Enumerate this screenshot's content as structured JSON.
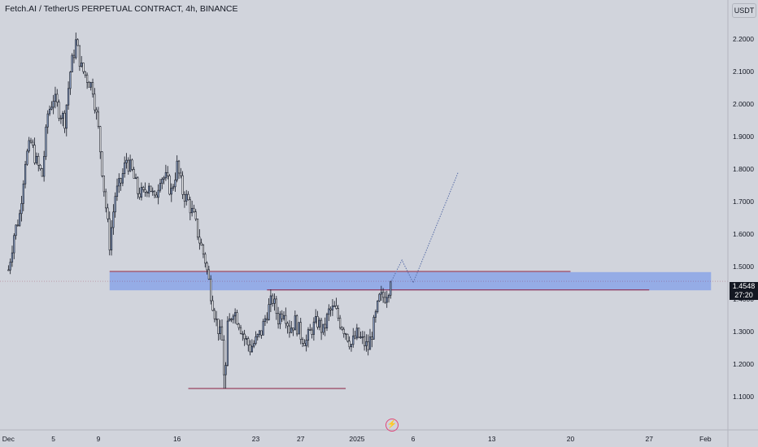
{
  "header": {
    "title": "Fetch.AI / TetherUS PERPETUAL CONTRACT, 4h, BINANCE",
    "currency_button": "USDT"
  },
  "price_tag": {
    "price": "1.4548",
    "countdown": "27:20"
  },
  "colors": {
    "background": "#d1d4dc",
    "candle_up": "#8fa5cc",
    "candle_down": "#ffffff",
    "wick": "#131722",
    "zone_fill": "#8fa8e6",
    "level_line": "#8b1f3f",
    "projection": "#5a6fa8",
    "price_tag_bg": "#131722"
  },
  "icons": {
    "bolt": "lightning-bolt-icon"
  },
  "chart_data": {
    "type": "candlestick",
    "y_axis": {
      "ticks": [
        "1.1000",
        "1.2000",
        "1.3000",
        "1.4000",
        "1.5000",
        "1.6000",
        "1.7000",
        "1.8000",
        "1.9000",
        "2.0000",
        "2.1000",
        "2.2000"
      ],
      "range": [
        1.02,
        2.32
      ],
      "position": "right"
    },
    "x_axis": {
      "ticks": [
        {
          "label": "Dec",
          "date": "2024-12-01"
        },
        {
          "label": "5",
          "date": "2024-12-05"
        },
        {
          "label": "9",
          "date": "2024-12-09"
        },
        {
          "label": "16",
          "date": "2024-12-16"
        },
        {
          "label": "23",
          "date": "2024-12-23"
        },
        {
          "label": "27",
          "date": "2024-12-27"
        },
        {
          "label": "2025",
          "date": "2025-01-01"
        },
        {
          "label": "6",
          "date": "2025-01-06"
        },
        {
          "label": "13",
          "date": "2025-01-13"
        },
        {
          "label": "20",
          "date": "2025-01-20"
        },
        {
          "label": "27",
          "date": "2025-01-27"
        },
        {
          "label": "Feb",
          "date": "2025-02-01"
        }
      ]
    },
    "grid": false,
    "price_path": [
      [
        "2024-12-01",
        1.49
      ],
      [
        "2024-12-01T12",
        1.6
      ],
      [
        "2024-12-02",
        1.66
      ],
      [
        "2024-12-02T12",
        1.83
      ],
      [
        "2024-12-03",
        1.88
      ],
      [
        "2024-12-03T12",
        1.82
      ],
      [
        "2024-12-04",
        1.78
      ],
      [
        "2024-12-04T12",
        1.97
      ],
      [
        "2024-12-05",
        2.02
      ],
      [
        "2024-12-05T12",
        1.98
      ],
      [
        "2024-12-06",
        1.95
      ],
      [
        "2024-12-06T12",
        2.1
      ],
      [
        "2024-12-07",
        2.19
      ],
      [
        "2024-12-07T12",
        2.11
      ],
      [
        "2024-12-08",
        2.08
      ],
      [
        "2024-12-08T12",
        2.05
      ],
      [
        "2024-12-09",
        1.92
      ],
      [
        "2024-12-09T12",
        1.74
      ],
      [
        "2024-12-10",
        1.57
      ],
      [
        "2024-12-10T12",
        1.72
      ],
      [
        "2024-12-11",
        1.76
      ],
      [
        "2024-12-11T12",
        1.83
      ],
      [
        "2024-12-12",
        1.79
      ],
      [
        "2024-12-12T12",
        1.73
      ],
      [
        "2024-12-13",
        1.72
      ],
      [
        "2024-12-13T12",
        1.76
      ],
      [
        "2024-12-14",
        1.7
      ],
      [
        "2024-12-14T12",
        1.78
      ],
      [
        "2024-12-15",
        1.77
      ],
      [
        "2024-12-15T12",
        1.73
      ],
      [
        "2024-12-16",
        1.81
      ],
      [
        "2024-12-16T12",
        1.73
      ],
      [
        "2024-12-17",
        1.7
      ],
      [
        "2024-12-17T12",
        1.65
      ],
      [
        "2024-12-18",
        1.58
      ],
      [
        "2024-12-18T12",
        1.52
      ],
      [
        "2024-12-19",
        1.42
      ],
      [
        "2024-12-19T12",
        1.33
      ],
      [
        "2024-12-20",
        1.27
      ],
      [
        "2024-12-20T06",
        1.13
      ],
      [
        "2024-12-20T12",
        1.31
      ],
      [
        "2024-12-21",
        1.37
      ],
      [
        "2024-12-21T12",
        1.33
      ],
      [
        "2024-12-22",
        1.28
      ],
      [
        "2024-12-22T12",
        1.25
      ],
      [
        "2024-12-23",
        1.27
      ],
      [
        "2024-12-23T12",
        1.3
      ],
      [
        "2024-12-24",
        1.36
      ],
      [
        "2024-12-24T12",
        1.4
      ],
      [
        "2024-12-25",
        1.34
      ],
      [
        "2024-12-25T12",
        1.37
      ],
      [
        "2024-12-26",
        1.31
      ],
      [
        "2024-12-26T12",
        1.33
      ],
      [
        "2024-12-27",
        1.29
      ],
      [
        "2024-12-27T12",
        1.27
      ],
      [
        "2024-12-28",
        1.31
      ],
      [
        "2024-12-28T12",
        1.33
      ],
      [
        "2024-12-29",
        1.3
      ],
      [
        "2024-12-29T12",
        1.36
      ],
      [
        "2024-12-30",
        1.37
      ],
      [
        "2024-12-30T12",
        1.33
      ],
      [
        "2024-12-31",
        1.3
      ],
      [
        "2024-12-31T12",
        1.26
      ],
      [
        "2025-01-01",
        1.29
      ],
      [
        "2025-01-01T12",
        1.27
      ],
      [
        "2025-01-02",
        1.25
      ],
      [
        "2025-01-02T12",
        1.32
      ],
      [
        "2025-01-03",
        1.4
      ],
      [
        "2025-01-03T12",
        1.41
      ],
      [
        "2025-01-04",
        1.45
      ]
    ],
    "zone": {
      "from": "2024-12-10",
      "to": "2025-02-01T12",
      "low": 1.427,
      "high": 1.483
    },
    "levels": [
      {
        "price": 1.485,
        "from": "2024-12-10",
        "to": "2025-01-20"
      },
      {
        "price": 1.428,
        "from": "2024-12-24",
        "to": "2025-01-27"
      },
      {
        "price": 1.125,
        "from": "2024-12-17",
        "to": "2024-12-31"
      }
    ],
    "projection": [
      [
        "2025-01-04",
        1.45
      ],
      [
        "2025-01-05",
        1.52
      ],
      [
        "2025-01-06",
        1.45
      ],
      [
        "2025-01-10",
        1.79
      ]
    ],
    "last_price": 1.4548
  }
}
